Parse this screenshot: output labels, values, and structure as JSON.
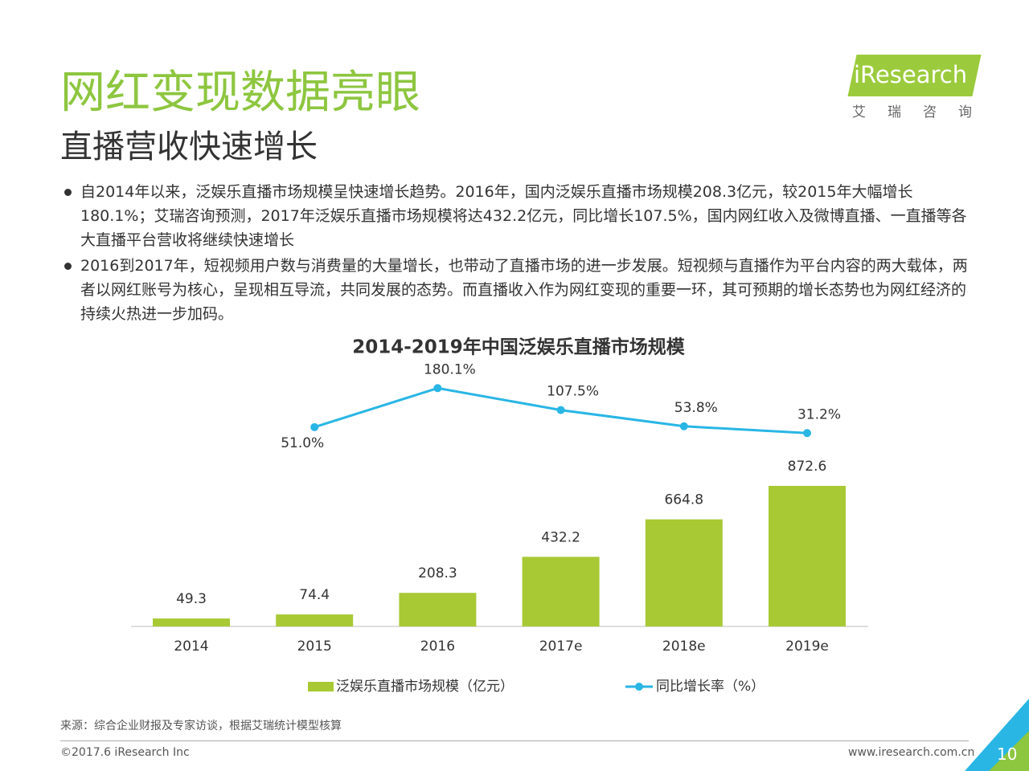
{
  "header": {
    "title": "网红变现数据亮眼",
    "subtitle": "直播营收快速增长"
  },
  "logo": {
    "brand": "iResearch",
    "name": "艾瑞咨询"
  },
  "bullets": [
    "自2014年以来，泛娱乐直播市场规模呈快速增长趋势。2016年，国内泛娱乐直播市场规模208.3亿元，较2015年大幅增长180.1%；艾瑞咨询预测，2017年泛娱乐直播市场规模将达432.2亿元，同比增长107.5%，国内网红收入及微博直播、一直播等各大直播平台营收将继续快速增长",
    "2016到2017年，短视频用户数与消费量的大量增长，也带动了直播市场的进一步发展。短视频与直播作为平台内容的两大载体，两者以网红账号为核心，呈现相互导流，共同发展的态势。而直播收入作为网红变现的重要一环，其可预期的增长态势也为网红经济的持续火热进一步加码。"
  ],
  "chart_data": {
    "type": "bar-line",
    "title": "2014-2019年中国泛娱乐直播市场规模",
    "categories": [
      "2014",
      "2015",
      "2016",
      "2017e",
      "2018e",
      "2019e"
    ],
    "series": [
      {
        "name": "泛娱乐直播市场规模（亿元）",
        "type": "bar",
        "color": "#a8c934",
        "values": [
          49.3,
          74.4,
          208.3,
          432.2,
          664.8,
          872.6
        ]
      },
      {
        "name": "同比增长率（%）",
        "type": "line",
        "color": "#29b6e5",
        "values": [
          null,
          51.0,
          180.1,
          107.5,
          53.8,
          31.2
        ],
        "value_labels": [
          null,
          "51.0%",
          "180.1%",
          "107.5%",
          "53.8%",
          "31.2%"
        ]
      }
    ]
  },
  "footer": {
    "source": "来源：综合企业财报及专家访谈，根据艾瑞统计模型核算",
    "copyright": "©2017.6 iResearch Inc",
    "url": "www.iresearch.com.cn",
    "page": 10
  }
}
